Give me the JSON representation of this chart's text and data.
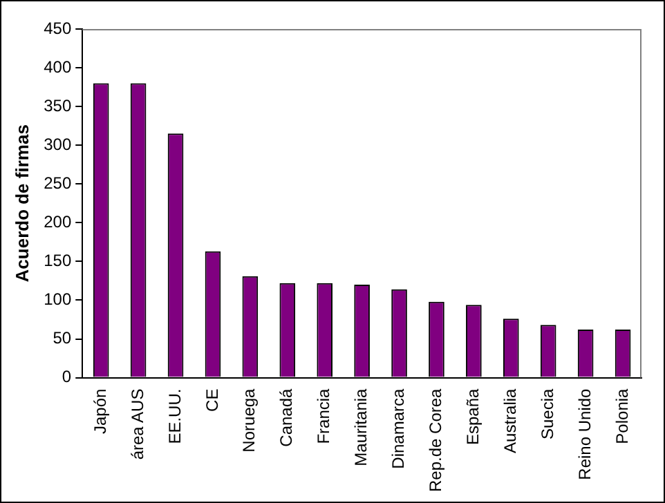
{
  "chart_data": {
    "type": "bar",
    "ylabel": "Acuerdo de firmas",
    "categories": [
      "Japón",
      "área AUS",
      "EE.UU.",
      "CE",
      "Noruega",
      "Canadá",
      "Francia",
      "Mauritania",
      "Dinamarca",
      "Rep.de Corea",
      "España",
      "Australia",
      "Suecia",
      "Reino Unido",
      "Polonia"
    ],
    "values": [
      380,
      380,
      315,
      163,
      131,
      122,
      122,
      120,
      114,
      98,
      94,
      76,
      68,
      62,
      62
    ],
    "color": "#800080",
    "ylim": [
      0,
      450
    ],
    "yticks": [
      0,
      50,
      100,
      150,
      200,
      250,
      300,
      350,
      400,
      450
    ],
    "grid": false,
    "legend": false
  }
}
